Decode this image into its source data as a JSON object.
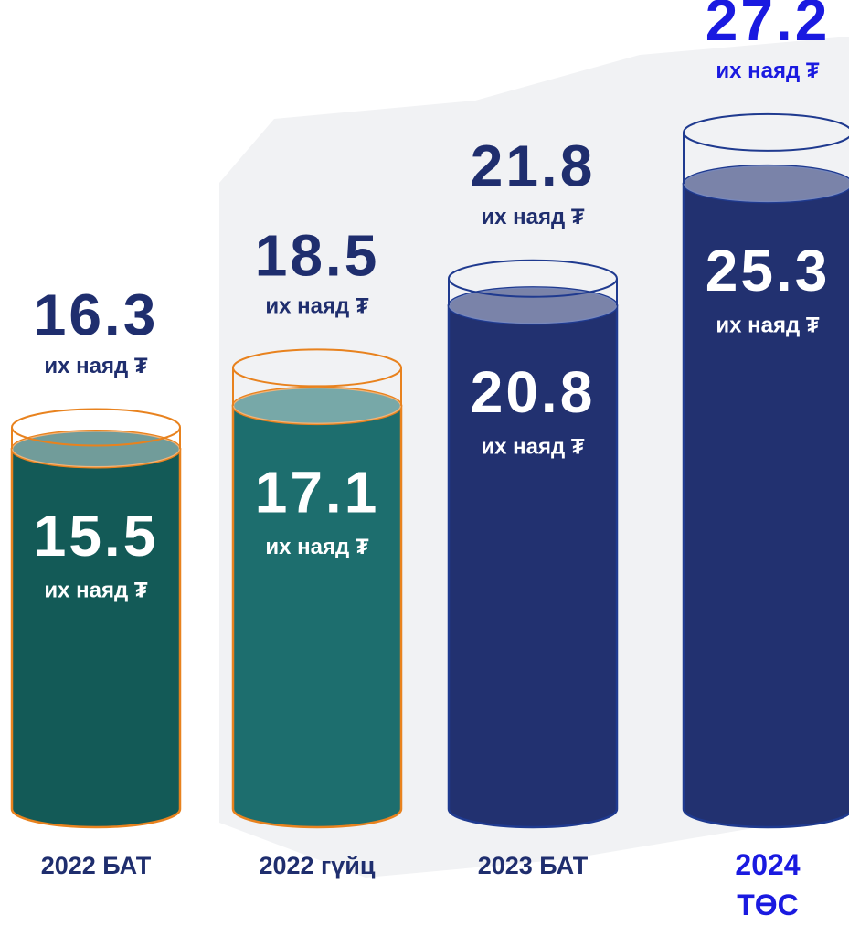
{
  "chart_data": {
    "type": "cylinder",
    "categories": [
      "2022 БАТ",
      "2022 гүйц",
      "2023 БАТ",
      "2024 ТӨС"
    ],
    "unit": "их наяд ₮",
    "series": [
      {
        "values": [
          16.3,
          18.5,
          21.8,
          27.2
        ],
        "colors": [
          "#e8821e",
          "#e8821e",
          "#1f3a8f",
          "#1f3a8f"
        ]
      },
      {
        "values": [
          15.5,
          17.1,
          20.8,
          25.3
        ],
        "colors": [
          "#135a57",
          "#1d6e6e",
          "#223170",
          "#223170"
        ]
      }
    ],
    "label_colors": [
      "#1f2e6e",
      "#1f2e6e",
      "#1f2e6e",
      "#1a1ae0"
    ]
  }
}
